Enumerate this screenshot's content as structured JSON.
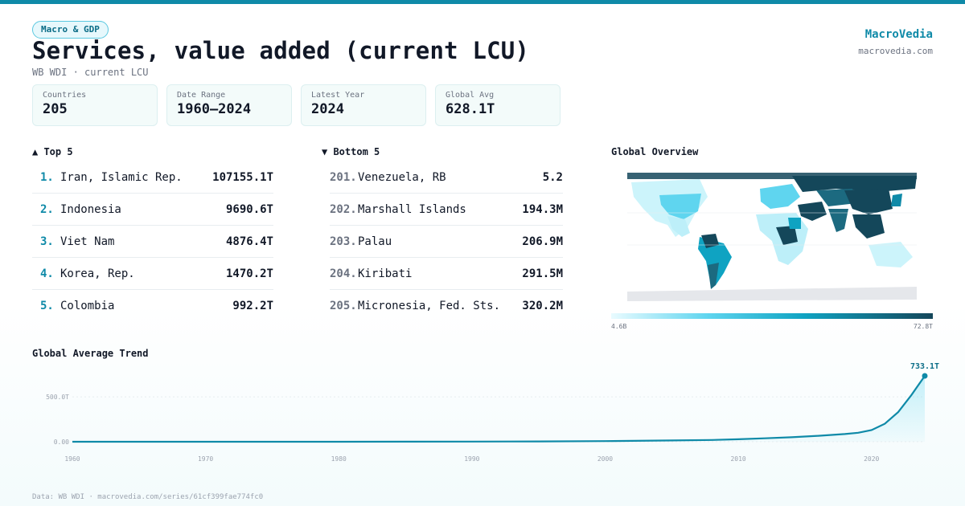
{
  "header": {
    "badge": "Macro & GDP",
    "title": "Services, value added (current LCU)",
    "subtitle": "WB WDI · current LCU"
  },
  "brand": {
    "name": "MacroVedia",
    "url": "macrovedia.com"
  },
  "stats": [
    {
      "label": "Countries",
      "value": "205"
    },
    {
      "label": "Date Range",
      "value": "1960–2024"
    },
    {
      "label": "Latest Year",
      "value": "2024"
    },
    {
      "label": "Global Avg",
      "value": "628.1T"
    }
  ],
  "top5": {
    "heading": "▲ Top 5",
    "items": [
      {
        "rank": "1.",
        "name": "Iran, Islamic Rep.",
        "value": "107155.1T"
      },
      {
        "rank": "2.",
        "name": "Indonesia",
        "value": "9690.6T"
      },
      {
        "rank": "3.",
        "name": "Viet Nam",
        "value": "4876.4T"
      },
      {
        "rank": "4.",
        "name": "Korea, Rep.",
        "value": "1470.2T"
      },
      {
        "rank": "5.",
        "name": "Colombia",
        "value": "992.2T"
      }
    ]
  },
  "bottom5": {
    "heading": "▼ Bottom 5",
    "items": [
      {
        "rank": "201.",
        "name": "Venezuela, RB",
        "value": "5.2"
      },
      {
        "rank": "202.",
        "name": "Marshall Islands",
        "value": "194.3M"
      },
      {
        "rank": "203.",
        "name": "Palau",
        "value": "206.9M"
      },
      {
        "rank": "204.",
        "name": "Kiribati",
        "value": "291.5M"
      },
      {
        "rank": "205.",
        "name": "Micronesia, Fed. Sts.",
        "value": "320.2M"
      }
    ]
  },
  "map": {
    "heading": "Global Overview",
    "legend_min": "4.6B",
    "legend_max": "72.8T",
    "colors": {
      "low": "#e9fbff",
      "mid": "#5fd5ef",
      "high": "#14475a",
      "nodata": "#e5e7eb"
    }
  },
  "trend": {
    "heading": "Global Average Trend",
    "end_label": "733.1T",
    "y_ticks": [
      "500.0T",
      "0.00"
    ],
    "x_ticks": [
      "1960",
      "1970",
      "1980",
      "1990",
      "2000",
      "2010",
      "2020"
    ]
  },
  "chart_data": {
    "type": "area",
    "xlabel": "",
    "ylabel": "",
    "ylim": [
      0,
      733.1
    ],
    "series": [
      {
        "x": [
          1960,
          1965,
          1970,
          1975,
          1980,
          1985,
          1990,
          1995,
          2000,
          2005,
          2008,
          2010,
          2012,
          2014,
          2016,
          2018,
          2019,
          2020,
          2021,
          2022,
          2023,
          2024
        ],
        "values": [
          0,
          0,
          0.1,
          0.2,
          0.3,
          0.6,
          2,
          4,
          7,
          14,
          20,
          28,
          38,
          50,
          66,
          86,
          100,
          130,
          200,
          330,
          520,
          733.1
        ]
      }
    ],
    "accent_color": "#0f8aa8"
  },
  "footer": {
    "source": "Data: WB WDI · macrovedia.com/series/61cf399fae774fc0"
  }
}
